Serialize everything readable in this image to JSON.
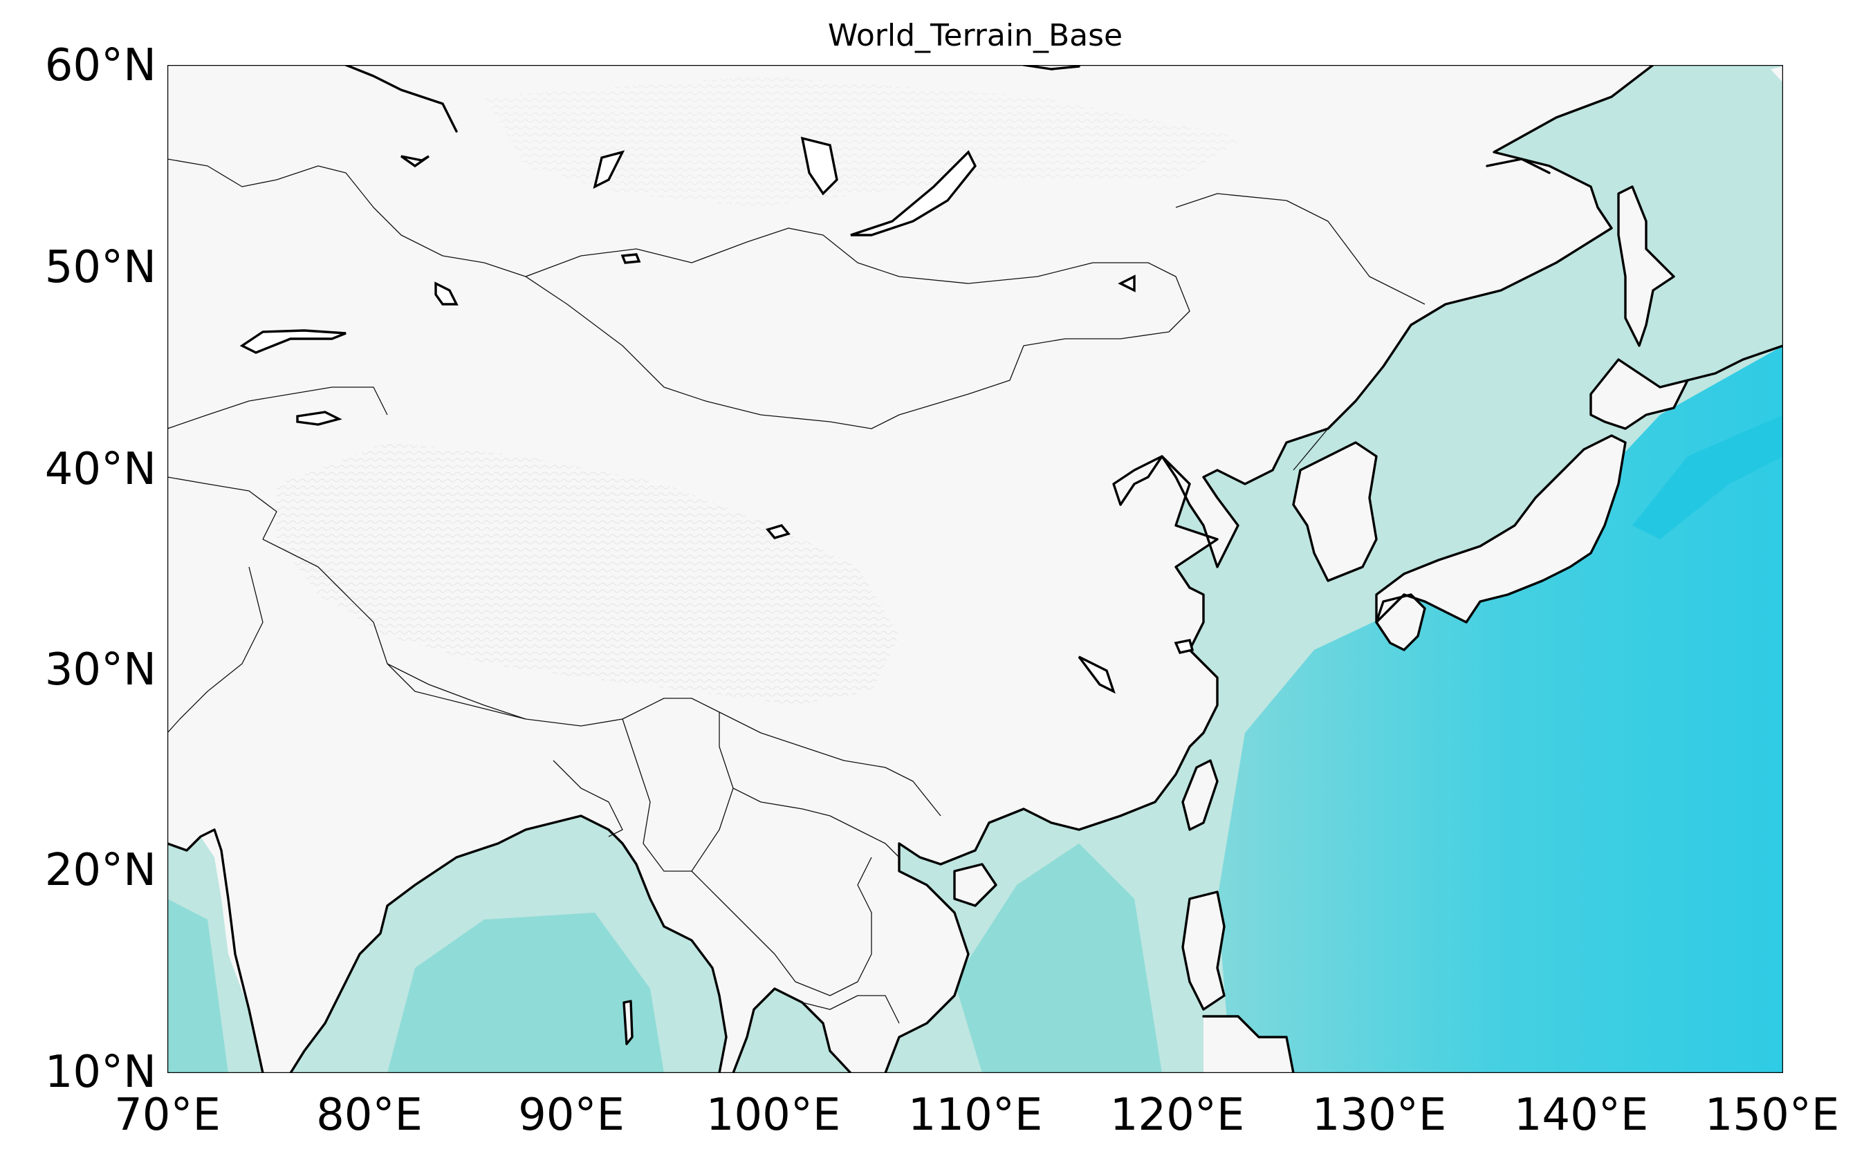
{
  "title": "World_Terrain_Base",
  "axes": {
    "x_ticks": [
      "70°E",
      "80°E",
      "90°E",
      "100°E",
      "110°E",
      "120°E",
      "130°E",
      "140°E",
      "150°E"
    ],
    "y_ticks": [
      "60°N",
      "50°N",
      "40°N",
      "30°N",
      "20°N",
      "10°N"
    ],
    "lon_range": [
      70,
      150
    ],
    "lat_range": [
      10,
      60
    ]
  },
  "colors": {
    "ocean_shallow": "#bfe6e1",
    "ocean_mid": "#93dcd8",
    "ocean_deep": "#35cde3",
    "land": "#f7f7f7",
    "coastline": "#000000",
    "border": "#111111"
  }
}
